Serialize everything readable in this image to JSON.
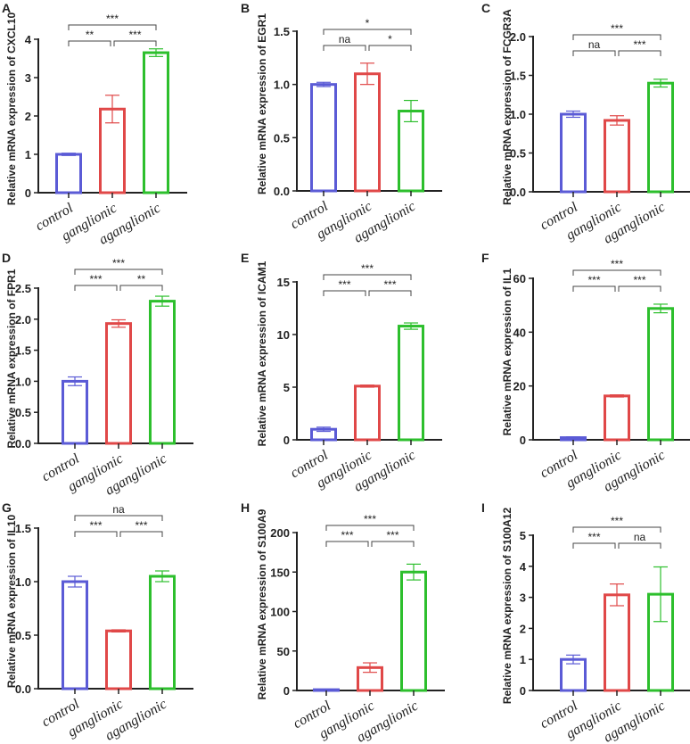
{
  "colors": {
    "control": "#5b5bd6",
    "ganglionic": "#e04848",
    "aganglionic": "#2dbf2d"
  },
  "chart_data": [
    {
      "type": "bar",
      "panel": "A",
      "title": "",
      "ylabel": "Relative mRNA expression of CXCL10",
      "categories": [
        "control",
        "ganglionic",
        "aganglionic"
      ],
      "values": [
        1.0,
        2.18,
        3.65
      ],
      "errors": [
        0.03,
        0.36,
        0.1
      ],
      "ylim": [
        0,
        4
      ],
      "yticks": [
        0,
        1,
        2,
        3,
        4
      ],
      "ytick_labels": [
        "0",
        "1",
        "2",
        "3",
        "4"
      ],
      "significance": {
        "control_vs_ganglionic": "**",
        "ganglionic_vs_aganglionic": "***",
        "control_vs_aganglionic": "***"
      }
    },
    {
      "type": "bar",
      "panel": "B",
      "title": "",
      "ylabel": "Relative mRNA expression of EGR1",
      "categories": [
        "control",
        "ganglionic",
        "aganglionic"
      ],
      "values": [
        1.0,
        1.1,
        0.75
      ],
      "errors": [
        0.02,
        0.1,
        0.1
      ],
      "ylim": [
        0,
        1.5
      ],
      "yticks": [
        0,
        0.5,
        1,
        1.5
      ],
      "ytick_labels": [
        "0.0",
        "0.5",
        "1.0",
        "1.5"
      ],
      "significance": {
        "control_vs_ganglionic": "na",
        "ganglionic_vs_aganglionic": "*",
        "control_vs_aganglionic": "*"
      }
    },
    {
      "type": "bar",
      "panel": "C",
      "title": "",
      "ylabel": "Relative mRNA expression of FCGR3A",
      "categories": [
        "control",
        "ganglionic",
        "aganglionic"
      ],
      "values": [
        1.0,
        0.92,
        1.4
      ],
      "errors": [
        0.04,
        0.06,
        0.05
      ],
      "ylim": [
        0,
        2
      ],
      "yticks": [
        0,
        0.5,
        1,
        1.5,
        2
      ],
      "ytick_labels": [
        "0.0",
        "0.5",
        "1.0",
        "1.5",
        "2.0"
      ],
      "significance": {
        "control_vs_ganglionic": "na",
        "ganglionic_vs_aganglionic": "***",
        "control_vs_aganglionic": "***"
      }
    },
    {
      "type": "bar",
      "panel": "D",
      "title": "",
      "ylabel": "Relative mRNA expression of FPR1",
      "categories": [
        "control",
        "ganglionic",
        "aganglionic"
      ],
      "values": [
        1.0,
        1.93,
        2.29
      ],
      "errors": [
        0.07,
        0.06,
        0.08
      ],
      "ylim": [
        0,
        2.5
      ],
      "yticks": [
        0,
        0.5,
        1,
        1.5,
        2,
        2.5
      ],
      "ytick_labels": [
        "0.0",
        "0.5",
        "1.0",
        "1.5",
        "2.0",
        "2.5"
      ],
      "significance": {
        "control_vs_ganglionic": "***",
        "ganglionic_vs_aganglionic": "**",
        "control_vs_aganglionic": "***"
      }
    },
    {
      "type": "bar",
      "panel": "E",
      "title": "",
      "ylabel": "Relative mRNA expression of ICAM1",
      "categories": [
        "control",
        "ganglionic",
        "aganglionic"
      ],
      "values": [
        1.0,
        5.1,
        10.8
      ],
      "errors": [
        0.2,
        0.1,
        0.3
      ],
      "ylim": [
        0,
        15
      ],
      "yticks": [
        0,
        5,
        10,
        15
      ],
      "ytick_labels": [
        "0",
        "5",
        "10",
        "15"
      ],
      "significance": {
        "control_vs_ganglionic": "***",
        "ganglionic_vs_aganglionic": "***",
        "control_vs_aganglionic": "***"
      }
    },
    {
      "type": "bar",
      "panel": "F",
      "title": "",
      "ylabel": "Relative mRNA expression of IL1",
      "categories": [
        "control",
        "ganglionic",
        "aganglionic"
      ],
      "values": [
        0.8,
        16.3,
        48.8
      ],
      "errors": [
        0.3,
        0.4,
        1.6
      ],
      "ylim": [
        0,
        60
      ],
      "yticks": [
        0,
        20,
        40,
        60
      ],
      "ytick_labels": [
        "0",
        "20",
        "40",
        "60"
      ],
      "significance": {
        "control_vs_ganglionic": "***",
        "ganglionic_vs_aganglionic": "***",
        "control_vs_aganglionic": "***"
      }
    },
    {
      "type": "bar",
      "panel": "G",
      "title": "",
      "ylabel": "Relative mRNA expression of IL10",
      "categories": [
        "control",
        "ganglionic",
        "aganglionic"
      ],
      "values": [
        1.0,
        0.54,
        1.05
      ],
      "errors": [
        0.05,
        0.01,
        0.05
      ],
      "ylim": [
        0,
        1.5
      ],
      "yticks": [
        0,
        0.5,
        1,
        1.5
      ],
      "ytick_labels": [
        "0.0",
        "0.5",
        "1.0",
        "1.5"
      ],
      "significance": {
        "control_vs_ganglionic": "***",
        "ganglionic_vs_aganglionic": "***",
        "control_vs_aganglionic": "na"
      }
    },
    {
      "type": "bar",
      "panel": "H",
      "title": "",
      "ylabel": "Relative mRNA expression of S100A9",
      "categories": [
        "control",
        "ganglionic",
        "aganglionic"
      ],
      "values": [
        1,
        29,
        150
      ],
      "errors": [
        0.5,
        6,
        10
      ],
      "ylim": [
        0,
        200
      ],
      "yticks": [
        0,
        50,
        100,
        150,
        200
      ],
      "ytick_labels": [
        "0",
        "50",
        "100",
        "150",
        "200"
      ],
      "significance": {
        "control_vs_ganglionic": "***",
        "ganglionic_vs_aganglionic": "***",
        "control_vs_aganglionic": "***"
      }
    },
    {
      "type": "bar",
      "panel": "I",
      "title": "",
      "ylabel": "Relative mRNA expression of S100A12",
      "categories": [
        "control",
        "ganglionic",
        "aganglionic"
      ],
      "values": [
        1.0,
        3.08,
        3.1
      ],
      "errors": [
        0.14,
        0.35,
        0.88
      ],
      "ylim": [
        0,
        5
      ],
      "yticks": [
        0,
        1,
        2,
        3,
        4,
        5
      ],
      "ytick_labels": [
        "0",
        "1",
        "2",
        "3",
        "4",
        "5"
      ],
      "significance": {
        "control_vs_ganglionic": "***",
        "ganglionic_vs_aganglionic": "na",
        "control_vs_aganglionic": "***"
      }
    }
  ]
}
